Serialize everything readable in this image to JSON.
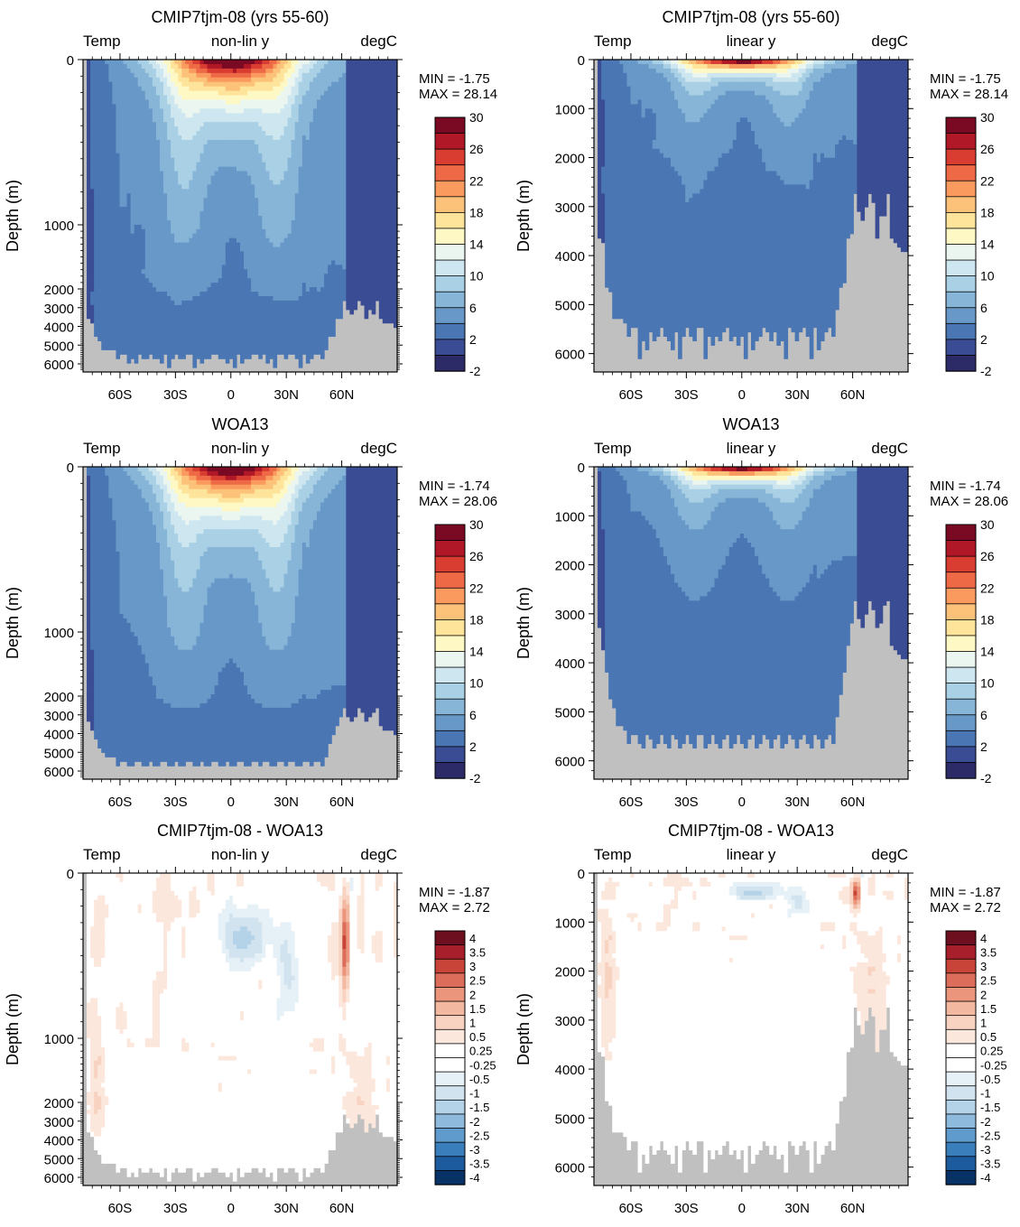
{
  "figure": {
    "row_titles": [
      "CMIP7tjm-08 (yrs 55-60)",
      "WOA13",
      "CMIP7tjm-08 - WOA13"
    ]
  },
  "colors": {
    "land": "#c0c0c0",
    "full_palette": [
      "#2d2a68",
      "#3a4c94",
      "#4a76b4",
      "#6798c8",
      "#87b5d8",
      "#a9d0e4",
      "#cde6ef",
      "#ecf6f0",
      "#fef9c4",
      "#fde49a",
      "#fcc27a",
      "#fa9a5e",
      "#ee6a46",
      "#d93c31",
      "#b01827",
      "#7a0a24"
    ],
    "diff_palette": [
      "#083266",
      "#1c5b9d",
      "#3a7ebc",
      "#5f9bcc",
      "#8dbadd",
      "#b4d2e8",
      "#d2e3f0",
      "#e6f0f7",
      "#ffffff",
      "#ffffff",
      "#fce7dc",
      "#f8d3c1",
      "#f3b9a0",
      "#ea957c",
      "#dc6d5a",
      "#c84438",
      "#a71f2b",
      "#6e0f1f"
    ]
  },
  "chart_data": [
    {
      "type": "heatmap",
      "id": "p1",
      "title": "CMIP7tjm-08 (yrs 55-60)",
      "left_label": "Temp",
      "center_label": "non-lin y",
      "right_label": "degC",
      "ylabel": "Depth (m)",
      "y_scale": "non-linear",
      "yticks": [
        0,
        1000,
        2000,
        3000,
        4000,
        5000,
        6000
      ],
      "x_range": [
        "80S",
        "90N"
      ],
      "xticks": [
        "60S",
        "30S",
        "0",
        "30N",
        "60N"
      ],
      "min_label": "MIN =  -1.75",
      "max_label": "MAX =  28.14",
      "colorbar_labels": [
        "30",
        "26",
        "22",
        "18",
        "14",
        "10",
        "6",
        "2",
        "-2"
      ],
      "field": "temperature",
      "source": "model"
    },
    {
      "type": "heatmap",
      "id": "p2",
      "title": "CMIP7tjm-08 (yrs 55-60)",
      "left_label": "Temp",
      "center_label": "linear y",
      "right_label": "degC",
      "ylabel": "Depth (m)",
      "y_scale": "linear",
      "yticks": [
        0,
        1000,
        2000,
        3000,
        4000,
        5000,
        6000
      ],
      "x_range": [
        "80S",
        "90N"
      ],
      "xticks": [
        "60S",
        "30S",
        "0",
        "30N",
        "60N"
      ],
      "min_label": "MIN =  -1.75",
      "max_label": "MAX =  28.14",
      "colorbar_labels": [
        "30",
        "26",
        "22",
        "18",
        "14",
        "10",
        "6",
        "2",
        "-2"
      ],
      "field": "temperature",
      "source": "model"
    },
    {
      "type": "heatmap",
      "id": "p3",
      "title": "WOA13",
      "left_label": "Temp",
      "center_label": "non-lin y",
      "right_label": "degC",
      "ylabel": "Depth (m)",
      "y_scale": "non-linear",
      "yticks": [
        0,
        1000,
        2000,
        3000,
        4000,
        5000,
        6000
      ],
      "x_range": [
        "80S",
        "90N"
      ],
      "xticks": [
        "60S",
        "30S",
        "0",
        "30N",
        "60N"
      ],
      "min_label": "MIN =  -1.74",
      "max_label": "MAX =  28.06",
      "colorbar_labels": [
        "30",
        "26",
        "22",
        "18",
        "14",
        "10",
        "6",
        "2",
        "-2"
      ],
      "field": "temperature",
      "source": "obs"
    },
    {
      "type": "heatmap",
      "id": "p4",
      "title": "WOA13",
      "left_label": "Temp",
      "center_label": "linear y",
      "right_label": "degC",
      "ylabel": "Depth (m)",
      "y_scale": "linear",
      "yticks": [
        0,
        1000,
        2000,
        3000,
        4000,
        5000,
        6000
      ],
      "x_range": [
        "80S",
        "90N"
      ],
      "xticks": [
        "60S",
        "30S",
        "0",
        "30N",
        "60N"
      ],
      "min_label": "MIN =  -1.74",
      "max_label": "MAX =  28.06",
      "colorbar_labels": [
        "30",
        "26",
        "22",
        "18",
        "14",
        "10",
        "6",
        "2",
        "-2"
      ],
      "field": "temperature",
      "source": "obs"
    },
    {
      "type": "heatmap",
      "id": "p5",
      "title": "CMIP7tjm-08 - WOA13",
      "left_label": "Temp",
      "center_label": "non-lin y",
      "right_label": "degC",
      "ylabel": "Depth (m)",
      "y_scale": "non-linear",
      "yticks": [
        0,
        1000,
        2000,
        3000,
        4000,
        5000,
        6000
      ],
      "x_range": [
        "80S",
        "90N"
      ],
      "xticks": [
        "60S",
        "30S",
        "0",
        "30N",
        "60N"
      ],
      "min_label": "MIN =  -1.87",
      "max_label": "MAX =   2.72",
      "colorbar_labels": [
        "4",
        "3.5",
        "3",
        "2.5",
        "2",
        "1.5",
        "1",
        "0.5",
        "0.25",
        "-0.25",
        "-0.5",
        "-1",
        "-1.5",
        "-2",
        "-2.5",
        "-3",
        "-3.5",
        "-4"
      ],
      "field": "difference",
      "source": "model-obs"
    },
    {
      "type": "heatmap",
      "id": "p6",
      "title": "CMIP7tjm-08 - WOA13",
      "left_label": "Temp",
      "center_label": "linear y",
      "right_label": "degC",
      "ylabel": "Depth (m)",
      "y_scale": "linear",
      "yticks": [
        0,
        1000,
        2000,
        3000,
        4000,
        5000,
        6000
      ],
      "x_range": [
        "80S",
        "90N"
      ],
      "xticks": [
        "60S",
        "30S",
        "0",
        "30N",
        "60N"
      ],
      "min_label": "MIN =  -1.87",
      "max_label": "MAX =   2.72",
      "colorbar_labels": [
        "4",
        "3.5",
        "3",
        "2.5",
        "2",
        "1.5",
        "1",
        "0.5",
        "0.25",
        "-0.25",
        "-0.5",
        "-1",
        "-1.5",
        "-2",
        "-2.5",
        "-3",
        "-3.5",
        "-4"
      ],
      "field": "difference",
      "source": "model-obs"
    }
  ]
}
